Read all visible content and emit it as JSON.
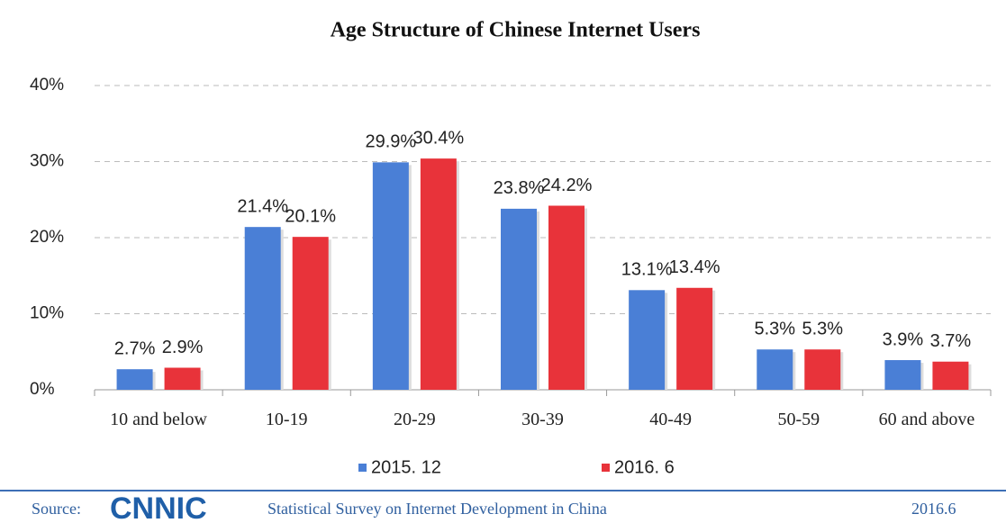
{
  "chart_data": {
    "type": "bar",
    "title": "Age Structure of Chinese Internet Users",
    "categories": [
      "10 and below",
      "10-19",
      "20-29",
      "30-39",
      "40-49",
      "50-59",
      "60 and above"
    ],
    "series": [
      {
        "name": "2015. 12",
        "color": "#4a7fd6",
        "values": [
          2.7,
          21.4,
          29.9,
          23.8,
          13.1,
          5.3,
          3.9
        ],
        "value_labels": [
          "2.7%",
          "21.4%",
          "29.9%",
          "23.8%",
          "13.1%",
          "5.3%",
          "3.9%"
        ]
      },
      {
        "name": "2016. 6",
        "color": "#e8333a",
        "values": [
          2.9,
          20.1,
          30.4,
          24.2,
          13.4,
          5.3,
          3.7
        ],
        "value_labels": [
          "2.9%",
          "20.1%",
          "30.4%",
          "24.2%",
          "13.4%",
          "5.3%",
          "3.7%"
        ]
      }
    ],
    "ylim": [
      0,
      40
    ],
    "yticks": [
      {
        "value": 0,
        "label": "0%"
      },
      {
        "value": 10,
        "label": "10%"
      },
      {
        "value": 20,
        "label": "20%"
      },
      {
        "value": 30,
        "label": "30%"
      },
      {
        "value": 40,
        "label": "40%"
      }
    ],
    "grid": true,
    "legend": "bottom"
  },
  "footer": {
    "source": "Source:",
    "logo": "CNNIC",
    "text": "Statistical Survey on Internet Development in China",
    "date": "2016.6"
  }
}
